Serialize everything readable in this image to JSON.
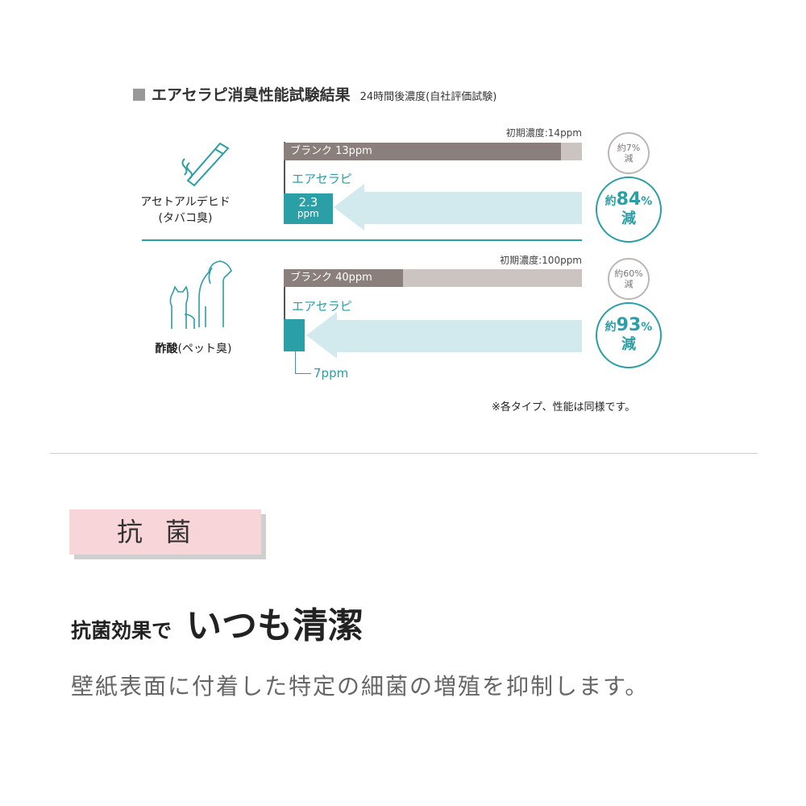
{
  "title": "エアセラピ消臭性能試験結果",
  "subtitle": "24時間後濃度(自社評価試験)",
  "colors": {
    "teal": "#2a9fa5",
    "light_blue": "#d2eaed",
    "blank_bar": "#8a7f7a",
    "track": "#cbc4c0",
    "badge": "#f7d5d8"
  },
  "chart_data": [
    {
      "type": "bar",
      "name": "アセトアルデヒド",
      "sub": "(タバコ臭)",
      "icon": "cigarette-icon",
      "initial_label": "初期濃度:14ppm",
      "initial": 14,
      "blank_label": "ブランク 13ppm",
      "blank": 13,
      "product_label": "エアセラピ",
      "product": 2.3,
      "product_value": "2.3",
      "product_unit": "ppm",
      "blank_reduction": [
        "約7%",
        "減"
      ],
      "product_reduction": {
        "pre": "約",
        "num": "84",
        "pct": "%",
        "post": "減"
      }
    },
    {
      "type": "bar",
      "name": "酢酸",
      "sub": "(ペット臭)",
      "icon": "dog-cat-icon",
      "initial_label": "初期濃度:100ppm",
      "initial": 100,
      "blank_label": "ブランク 40ppm",
      "blank": 40,
      "product_label": "エアセラピ",
      "product": 7,
      "product_callout": "7ppm",
      "blank_reduction": [
        "約60%",
        "減"
      ],
      "product_reduction": {
        "pre": "約",
        "num": "93",
        "pct": "%",
        "post": "減"
      }
    }
  ],
  "note": "※各タイプ、性能は同様です。",
  "section": {
    "badge": "抗菌",
    "headline_small": "抗菌効果で",
    "headline_big": "いつも清潔",
    "body": "壁紙表面に付着した特定の細菌の増殖を抑制します。"
  }
}
